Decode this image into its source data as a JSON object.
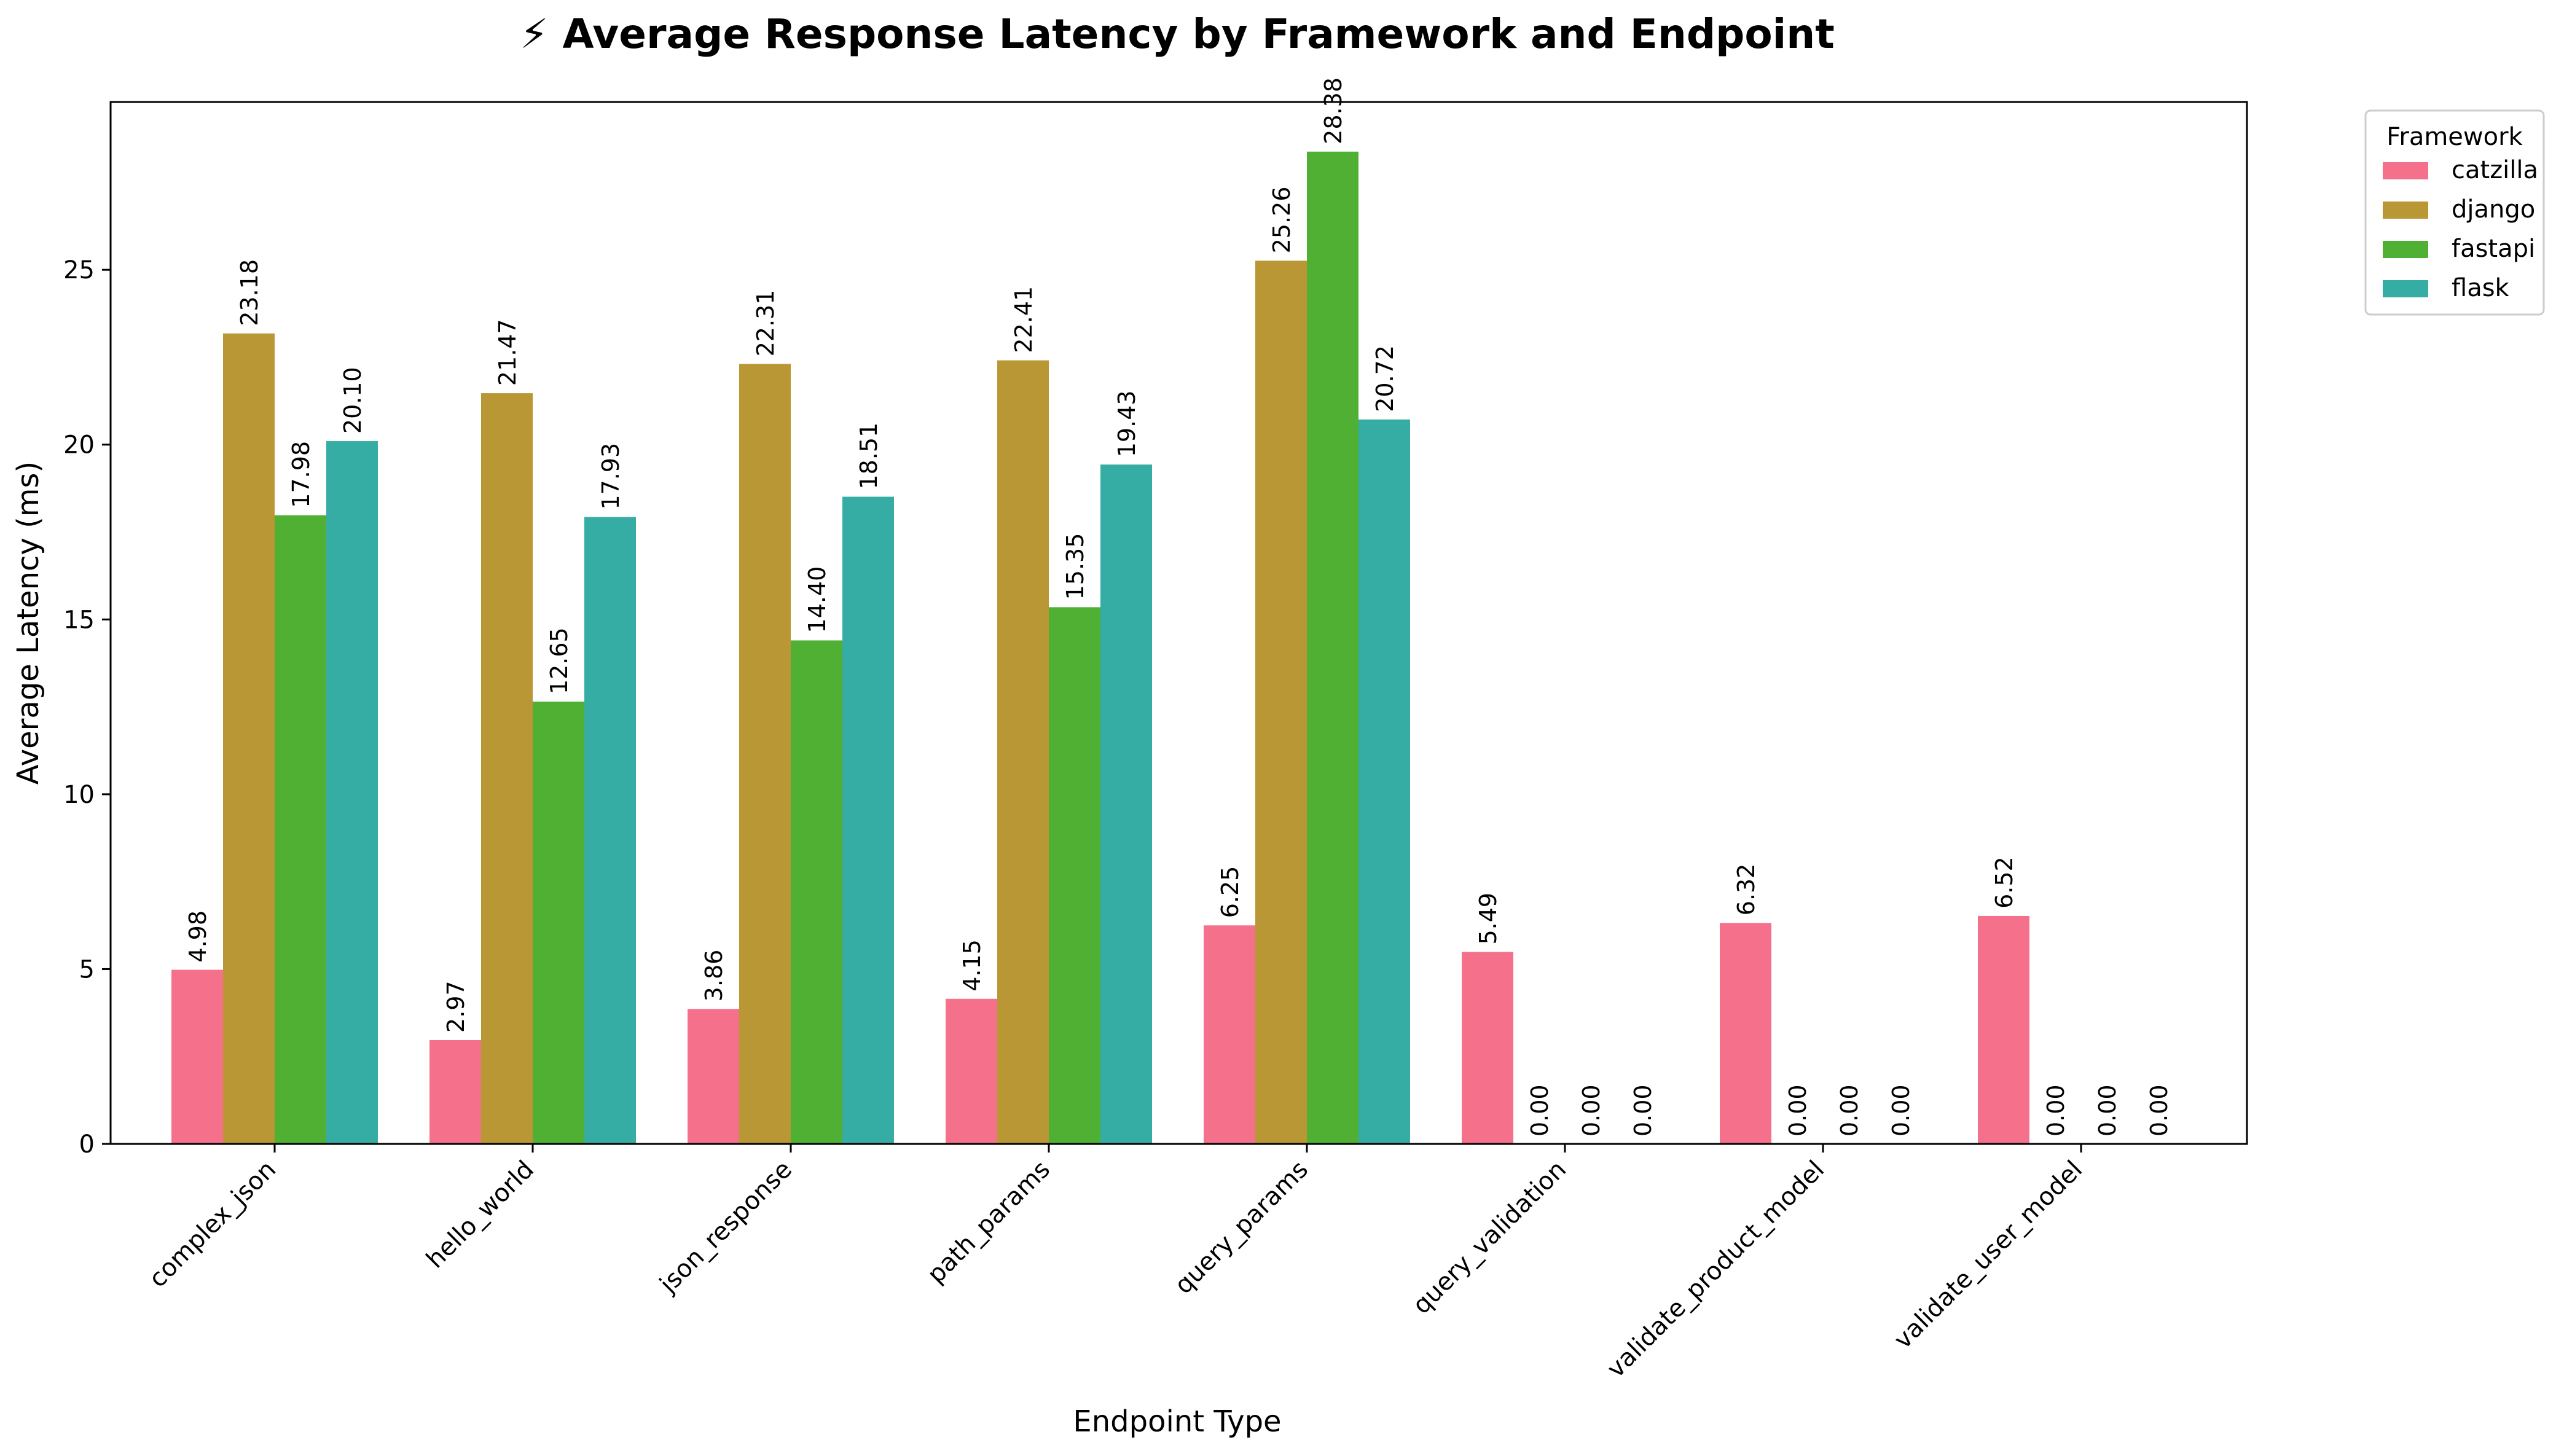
{
  "chart_data": {
    "type": "bar",
    "title": "⚡ Average Response Latency by Framework and Endpoint",
    "xlabel": "Endpoint Type",
    "ylabel": "Average Latency (ms)",
    "ylim": [
      0,
      29.8
    ],
    "yticks": [
      0,
      5,
      10,
      15,
      20,
      25
    ],
    "grid": false,
    "legend": {
      "title": "Framework",
      "placement": "outside-top-right"
    },
    "categories": [
      "complex_json",
      "hello_world",
      "json_response",
      "path_params",
      "query_params",
      "query_validation",
      "validate_product_model",
      "validate_user_model"
    ],
    "series": [
      {
        "name": "catzilla",
        "color": "#f5718b",
        "values": [
          4.98,
          2.97,
          3.86,
          4.15,
          6.25,
          5.49,
          6.32,
          6.52
        ]
      },
      {
        "name": "django",
        "color": "#b99734",
        "values": [
          23.18,
          21.47,
          22.31,
          22.41,
          25.26,
          0.0,
          0.0,
          0.0
        ]
      },
      {
        "name": "fastapi",
        "color": "#4fb033",
        "values": [
          17.98,
          12.65,
          14.4,
          15.35,
          28.38,
          0.0,
          0.0,
          0.0
        ]
      },
      {
        "name": "flask",
        "color": "#36ada4",
        "values": [
          20.1,
          17.93,
          18.51,
          19.43,
          20.72,
          0.0,
          0.0,
          0.0
        ]
      }
    ],
    "value_label_format": "2-decimals"
  }
}
